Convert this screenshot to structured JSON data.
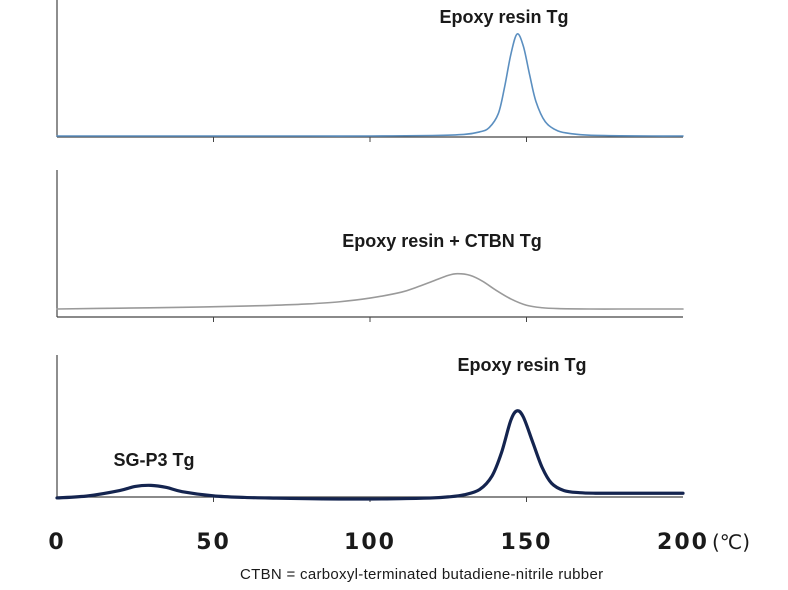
{
  "chart_data": {
    "type": "line",
    "x_unit": "(℃)",
    "xlim": [
      0,
      200
    ],
    "x_ticks": [
      0,
      50,
      100,
      150,
      200
    ],
    "x_tick_labels": [
      "0",
      "50",
      "100",
      "150",
      "200"
    ],
    "grid": false,
    "footnote": "CTBN = carboxyl-terminated butadiene-nitrile rubber",
    "panels": [
      {
        "series": [
          {
            "color": "#5b8fc0",
            "stroke_width": 1.6,
            "x": [
              0,
              20,
              40,
              60,
              80,
              100,
              120,
              130,
              135,
              138,
              141,
              143,
              145,
              147,
              149,
              151,
              153,
              156,
              160,
              165,
              170,
              180,
              190,
              200
            ],
            "y": [
              0,
              0,
              0,
              0,
              0,
              0,
              0.5,
              1.5,
              4,
              8,
              22,
              48,
              80,
              100,
              88,
              60,
              34,
              14,
              5,
              2,
              0.8,
              0.2,
              0,
              0
            ]
          }
        ],
        "annotations": [
          {
            "text": "Epoxy resin Tg",
            "x": 147
          }
        ]
      },
      {
        "series": [
          {
            "color": "#9a9a9a",
            "stroke_width": 1.6,
            "x": [
              0,
              20,
              40,
              60,
              70,
              80,
              90,
              100,
              110,
              115,
              120,
              125,
              128,
              132,
              136,
              140,
              145,
              150,
              155,
              160,
              170,
              180,
              190,
              200
            ],
            "y": [
              0,
              2,
              4,
              7,
              9,
              12,
              17,
              26,
              40,
              52,
              66,
              80,
              84,
              80,
              66,
              46,
              24,
              9,
              3,
              1,
              0,
              0,
              0,
              0
            ]
          }
        ],
        "annotations": [
          {
            "text": "Epoxy resin + CTBN Tg",
            "x": 128
          }
        ]
      },
      {
        "series": [
          {
            "color": "#14244f",
            "stroke_width": 3.2,
            "x": [
              0,
              10,
              20,
              25,
              30,
              35,
              40,
              50,
              60,
              70,
              80,
              90,
              100,
              110,
              120,
              125,
              130,
              135,
              139,
              142,
              145,
              147,
              149,
              152,
              155,
              158,
              162,
              167,
              172,
              180,
              190,
              200
            ],
            "y": [
              1,
              3,
              8,
              12,
              13,
              11,
              7,
              3,
              1.5,
              0.8,
              0.3,
              0,
              0,
              0.3,
              1,
              2,
              4,
              9,
              22,
              44,
              75,
              84,
              78,
              54,
              30,
              15,
              8,
              6,
              5.5,
              5.5,
              5.5,
              5.5
            ]
          }
        ],
        "annotations": [
          {
            "text": "Epoxy resin Tg",
            "x": 147
          },
          {
            "text": "SG-P3 Tg",
            "x": 30
          }
        ]
      }
    ]
  }
}
